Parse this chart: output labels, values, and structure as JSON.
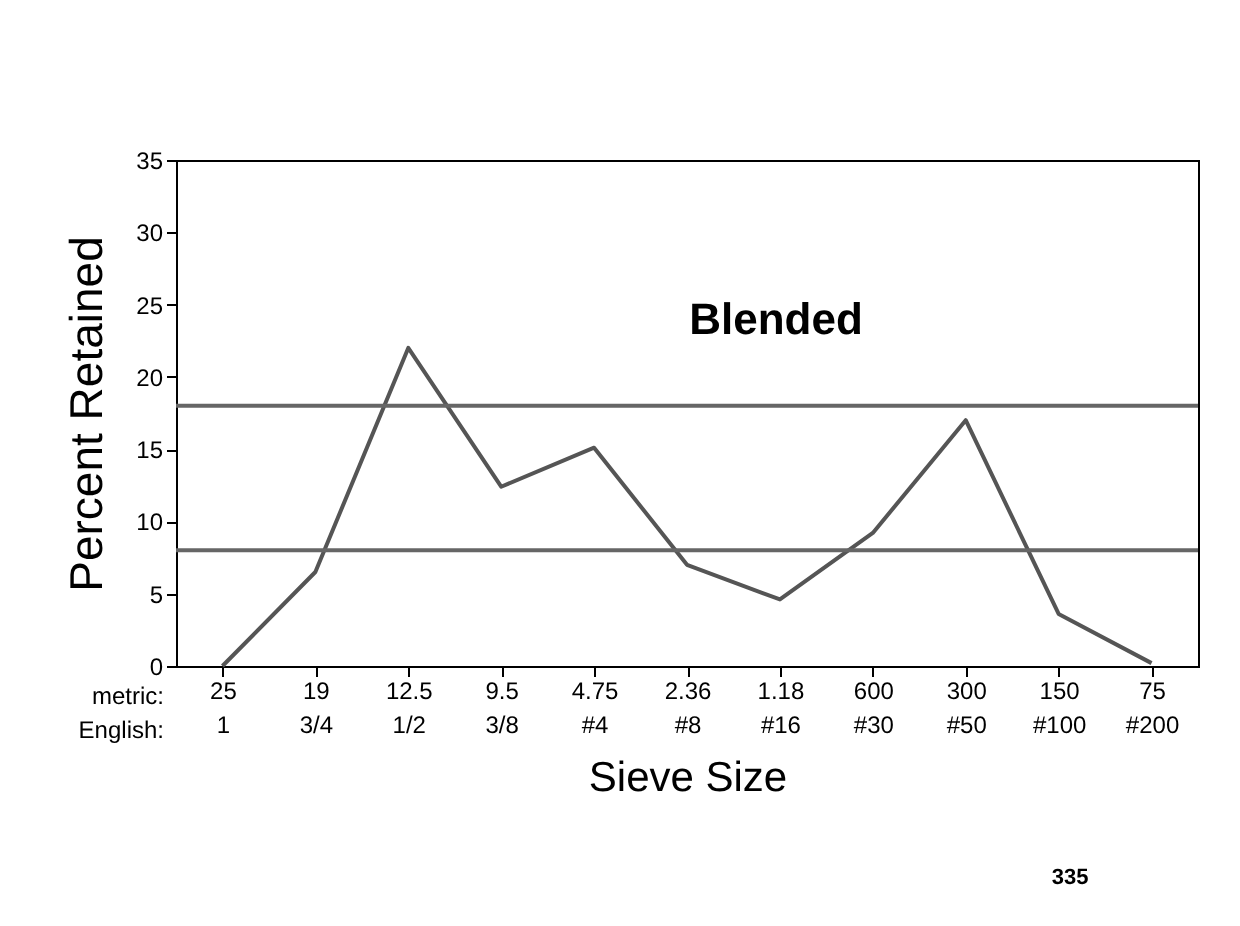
{
  "chart_data": {
    "type": "line",
    "title": "Blended",
    "xlabel": "Sieve Size",
    "ylabel": "Percent Retained",
    "categories": [
      "25\n1",
      "19\n3/4",
      "12.5\n1/2",
      "9.5\n3/8",
      "4.75\n#4",
      "2.36\n#8",
      "1.18\n#16",
      "600\n#30",
      "300\n#50",
      "150\n#100",
      "75\n#200"
    ],
    "series": [
      {
        "color": "#555555",
        "values": [
          0,
          6.5,
          22,
          12.4,
          15.1,
          7,
          4.6,
          9.2,
          17,
          3.6,
          0.2
        ]
      }
    ],
    "ylim": [
      0,
      35
    ],
    "yticks": [
      0,
      5,
      10,
      15,
      20,
      25,
      30,
      35
    ],
    "grid": false,
    "marker": "none",
    "line_style": "solid",
    "ref_lines": [
      {
        "axis": "y",
        "value": 8,
        "color": "#666666"
      },
      {
        "axis": "y",
        "value": 18,
        "color": "#666666"
      }
    ],
    "annotations": [
      "metric:",
      "English:",
      "335"
    ]
  }
}
